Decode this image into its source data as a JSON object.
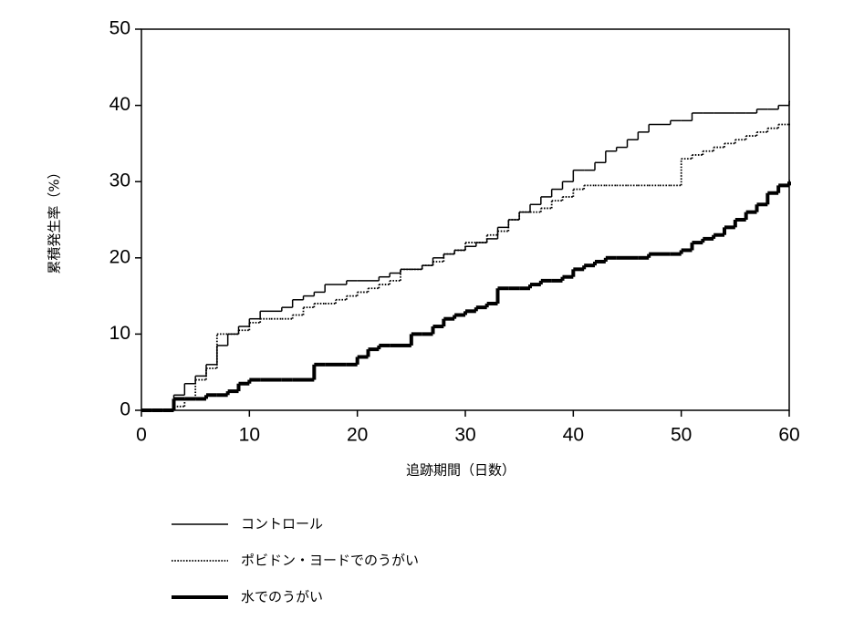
{
  "chart_data": {
    "type": "line",
    "step": "post",
    "xlabel": "追跡期間（日数）",
    "ylabel": "累積発生率（%）",
    "x": [
      0,
      1,
      2,
      3,
      4,
      5,
      6,
      7,
      8,
      9,
      10,
      11,
      12,
      13,
      14,
      15,
      16,
      17,
      18,
      19,
      20,
      21,
      22,
      23,
      24,
      25,
      26,
      27,
      28,
      29,
      30,
      31,
      32,
      33,
      34,
      35,
      36,
      37,
      38,
      39,
      40,
      41,
      42,
      43,
      44,
      45,
      46,
      47,
      48,
      49,
      50,
      51,
      52,
      53,
      54,
      55,
      56,
      57,
      58,
      59,
      60
    ],
    "xlim": [
      0,
      60
    ],
    "xticks": [
      0,
      10,
      20,
      30,
      40,
      50,
      60
    ],
    "ylim": [
      0,
      50
    ],
    "yticks": [
      0,
      10,
      20,
      30,
      40,
      50
    ],
    "grid": false,
    "legend": "bottom",
    "series": [
      {
        "name": "コントロール",
        "color": "#000000",
        "line_width": 1.5,
        "line_style": "solid",
        "values": [
          0,
          0,
          0,
          2,
          3.5,
          4.5,
          6,
          8.5,
          10,
          11,
          12,
          13,
          13,
          13.5,
          14.5,
          15,
          15.5,
          16.5,
          16.5,
          17,
          17,
          17,
          17.5,
          18,
          18.5,
          18.5,
          19,
          20,
          20.5,
          21,
          21.5,
          22,
          22.5,
          24,
          25,
          26,
          27,
          28,
          29,
          30,
          31.5,
          31.5,
          32.5,
          34,
          34.5,
          35.5,
          36.5,
          37.5,
          37.5,
          38,
          38,
          39,
          39,
          39,
          39,
          39,
          39,
          39.5,
          39.5,
          40,
          40.5
        ]
      },
      {
        "name": "ポビドン・ヨードでのうがい",
        "color": "#000000",
        "line_width": 1.8,
        "line_style": "dotted",
        "values": [
          0,
          0,
          0,
          0.5,
          1.5,
          4,
          5.5,
          10,
          10,
          10.5,
          11.5,
          12,
          12,
          12,
          12.5,
          13.5,
          14,
          14,
          14.5,
          15,
          15.5,
          16,
          16.5,
          17,
          18.5,
          18.5,
          19,
          19.5,
          20.5,
          21,
          22,
          22,
          23,
          23.5,
          25,
          26,
          26,
          26.5,
          27.5,
          28,
          29,
          29.5,
          29.5,
          29.5,
          29.5,
          29.5,
          29.5,
          29.5,
          29.5,
          29.5,
          33,
          33.5,
          34,
          34.5,
          35,
          35.5,
          36,
          36.5,
          37,
          37.5,
          37.5
        ]
      },
      {
        "name": "水でのうがい",
        "color": "#000000",
        "line_width": 4,
        "line_style": "solid",
        "values": [
          0,
          0,
          0,
          1.5,
          1.5,
          1.5,
          2,
          2,
          2.5,
          3.5,
          4,
          4,
          4,
          4,
          4,
          4,
          6,
          6,
          6,
          6,
          7,
          8,
          8.5,
          8.5,
          8.5,
          10,
          10,
          11,
          12,
          12.5,
          13,
          13.5,
          14,
          16,
          16,
          16,
          16.5,
          17,
          17,
          17.5,
          18.5,
          19,
          19.5,
          20,
          20,
          20,
          20,
          20.5,
          20.5,
          20.5,
          21,
          22,
          22.5,
          23,
          24,
          25,
          26,
          27,
          28.5,
          29.5,
          30
        ]
      }
    ]
  }
}
